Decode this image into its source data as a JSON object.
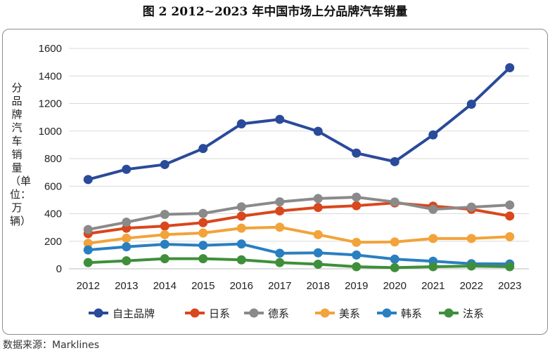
{
  "figure_title": "图 2  2012~2023 年中国市场上分品牌汽车销量",
  "source": "数据来源：Marklines",
  "chart_data": {
    "type": "line",
    "title": "图 2  2012~2023 年中国市场上分品牌汽车销量",
    "xlabel": "",
    "ylabel": "分品牌汽车销量（单位：万辆）",
    "x": [
      "2012",
      "2013",
      "2014",
      "2015",
      "2016",
      "2017",
      "2018",
      "2019",
      "2020",
      "2021",
      "2022",
      "2023"
    ],
    "ylim": [
      0,
      1600
    ],
    "yticks": [
      0,
      200,
      400,
      600,
      800,
      1000,
      1200,
      1400,
      1600
    ],
    "grid": true,
    "legend_position": "bottom",
    "series": [
      {
        "name": "自主品牌",
        "color": "#2a4a9a",
        "values": [
          648,
          722,
          757,
          873,
          1052,
          1085,
          998,
          840,
          778,
          972,
          1195,
          1460
        ]
      },
      {
        "name": "日系",
        "color": "#d9471c",
        "values": [
          255,
          295,
          310,
          335,
          382,
          420,
          445,
          458,
          478,
          455,
          432,
          383
        ]
      },
      {
        "name": "德系",
        "color": "#8a8a8a",
        "values": [
          285,
          338,
          395,
          402,
          450,
          486,
          510,
          520,
          485,
          432,
          448,
          463
        ]
      },
      {
        "name": "美系",
        "color": "#f2a33a",
        "values": [
          185,
          222,
          248,
          260,
          295,
          302,
          248,
          192,
          195,
          220,
          220,
          233
        ]
      },
      {
        "name": "韩系",
        "color": "#2a7fc1",
        "values": [
          137,
          160,
          178,
          170,
          180,
          113,
          116,
          100,
          70,
          55,
          37,
          35
        ]
      },
      {
        "name": "法系",
        "color": "#3f8f3a",
        "values": [
          45,
          58,
          73,
          73,
          65,
          45,
          33,
          15,
          8,
          15,
          20,
          15
        ]
      }
    ]
  }
}
